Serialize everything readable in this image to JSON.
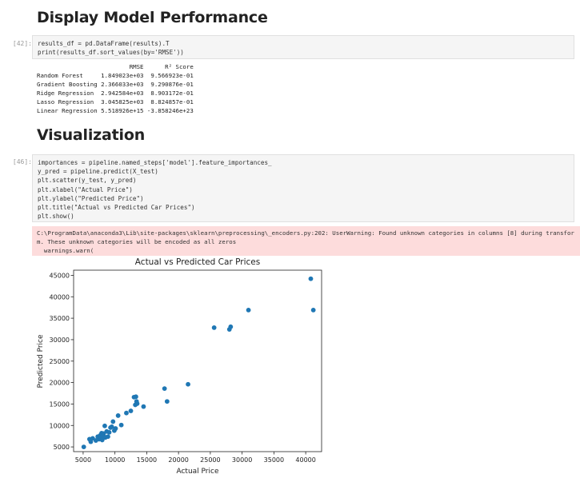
{
  "sections": {
    "performance_title": "Display Model Performance",
    "visualization_title": "Visualization"
  },
  "cell42": {
    "prompt": "[42]:",
    "code": [
      "results_df = pd.DataFrame(results).T",
      "print(results_df.sort_values(by='RMSE'))"
    ],
    "output": {
      "header": {
        "rmse": "RMSE",
        "r2": "R² Score"
      },
      "rows": [
        {
          "model": "Random Forest",
          "rmse": "1.849023e+03",
          "r2": "9.566923e-01"
        },
        {
          "model": "Gradient Boosting",
          "rmse": "2.366033e+03",
          "r2": "9.290876e-01"
        },
        {
          "model": "Ridge Regression",
          "rmse": "2.942584e+03",
          "r2": "8.903172e-01"
        },
        {
          "model": "Lasso Regression",
          "rmse": "3.045825e+03",
          "r2": "8.824857e-01"
        },
        {
          "model": "Linear Regression",
          "rmse": "5.518926e+15",
          "r2": "-3.858246e+23"
        }
      ]
    }
  },
  "cell46": {
    "prompt": "[46]:",
    "code": [
      "importances = pipeline.named_steps['model'].feature_importances_",
      "y_pred = pipeline.predict(X_test)",
      "plt.scatter(y_test, y_pred)",
      "plt.xlabel(\"Actual Price\")",
      "plt.ylabel(\"Predicted Price\")",
      "plt.title(\"Actual vs Predicted Car Prices\")",
      "plt.show()"
    ],
    "stderr": [
      "C:\\ProgramData\\anaconda3\\Lib\\site-packages\\sklearn\\preprocessing\\_encoders.py:202: UserWarning: Found unknown categories in columns [8] during transfor",
      "m. These unknown categories will be encoded as all zeros",
      "  warnings.warn("
    ]
  },
  "colors": {
    "point": "#1f77b4",
    "stderr_bg": "#fddcdc",
    "code_bg": "#f5f5f5"
  },
  "chart_data": {
    "type": "scatter",
    "title": "Actual vs Predicted Car Prices",
    "xlabel": "Actual Price",
    "ylabel": "Predicted Price",
    "xlim": [
      3500,
      42500
    ],
    "ylim": [
      3900,
      46200
    ],
    "xticks": [
      5000,
      10000,
      15000,
      20000,
      25000,
      30000,
      35000,
      40000
    ],
    "yticks": [
      5000,
      10000,
      15000,
      20000,
      25000,
      30000,
      35000,
      40000,
      45000
    ],
    "grid": false,
    "series": [
      {
        "x": [
          5100,
          6000,
          6200,
          6500,
          7000,
          7300,
          7500,
          7700,
          7800,
          7900,
          8000,
          8100,
          8200,
          8300,
          8400,
          8500,
          8700,
          8900,
          9100,
          9300,
          9500,
          9700,
          9900,
          10100,
          10500,
          11000,
          11800,
          12500,
          13000,
          13200,
          13300,
          13400,
          13500,
          14500,
          17800,
          18200,
          21500,
          25600,
          28000,
          28200,
          31000,
          40800,
          41200
        ],
        "y": [
          5000,
          6800,
          6200,
          7000,
          6500,
          7400,
          6800,
          7700,
          6900,
          8200,
          6600,
          7600,
          8100,
          7400,
          9900,
          7200,
          8600,
          7400,
          8400,
          9500,
          9700,
          10900,
          8800,
          9300,
          12300,
          10100,
          12900,
          13400,
          16600,
          14800,
          16700,
          15600,
          15100,
          14400,
          18600,
          15600,
          19600,
          32800,
          32400,
          33000,
          36900,
          44200,
          36900
        ]
      }
    ]
  }
}
